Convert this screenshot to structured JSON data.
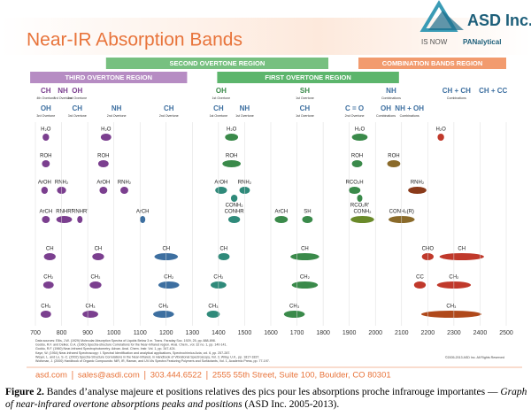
{
  "chart_data": {
    "type": "bands",
    "title": "Near-IR Absorption Bands",
    "logo": {
      "name": "ASD Inc.",
      "tagline": "IS NOW",
      "brand": "PANalytical"
    },
    "xlim": [
      700,
      2500
    ],
    "xticks": [
      700,
      800,
      900,
      1000,
      1100,
      1200,
      1300,
      1400,
      1500,
      1600,
      1700,
      1800,
      1900,
      2000,
      2100,
      2200,
      2300,
      2400,
      2500
    ],
    "regions": [
      {
        "name": "SECOND OVERTONE REGION",
        "from": 970,
        "to": 1820,
        "color": "#5fb56a",
        "tier": 0
      },
      {
        "name": "COMBINATION BANDS REGION",
        "from": 1935,
        "to": 2500,
        "color": "#f08a55",
        "tier": 0
      },
      {
        "name": "THIRD OVERTONE REGION",
        "from": 680,
        "to": 1280,
        "color": "#a978b8",
        "tier": 1
      },
      {
        "name": "FIRST OVERTONE REGION",
        "from": 1395,
        "to": 2090,
        "color": "#3fa852",
        "tier": 1
      }
    ],
    "groups": [
      {
        "name": "CH",
        "sub": "4th Overtone",
        "x": 740,
        "color": "#7b3f8f",
        "tier": 0
      },
      {
        "name": "NH",
        "sub": "3rd Overtone",
        "x": 805,
        "color": "#7b3f8f",
        "tier": 0
      },
      {
        "name": "OH",
        "sub": "2nd Overtone",
        "x": 860,
        "color": "#7b3f8f",
        "tier": 0
      },
      {
        "name": "OH",
        "sub": "1st Overtone",
        "x": 1410,
        "color": "#3a8a4a",
        "tier": 0
      },
      {
        "name": "SH",
        "sub": "1st Overtone",
        "x": 1730,
        "color": "#3a8a4a",
        "tier": 0
      },
      {
        "name": "NH",
        "sub": "Combinations",
        "x": 2060,
        "color": "#3d6fa0",
        "tier": 0
      },
      {
        "name": "CH + CH",
        "sub": "Combinations",
        "x": 2310,
        "color": "#3d6fa0",
        "tier": 0
      },
      {
        "name": "CH + CC",
        "x": 2450,
        "color": "#3d6fa0",
        "tier": 0
      },
      {
        "name": "OH",
        "sub": "3rd Overtone",
        "x": 740,
        "color": "#3d6fa0",
        "tier": 1
      },
      {
        "name": "CH",
        "sub": "3rd Overtone",
        "x": 860,
        "color": "#3d6fa0",
        "tier": 1
      },
      {
        "name": "NH",
        "sub": "2nd Overtone",
        "x": 1010,
        "color": "#3d6fa0",
        "tier": 1
      },
      {
        "name": "CH",
        "sub": "2nd Overtone",
        "x": 1210,
        "color": "#3d6fa0",
        "tier": 1
      },
      {
        "name": "CH",
        "sub": "1st Overtone",
        "x": 1400,
        "color": "#3d6fa0",
        "tier": 1
      },
      {
        "name": "NH",
        "sub": "1st Overtone",
        "x": 1500,
        "color": "#3d6fa0",
        "tier": 1
      },
      {
        "name": "CH",
        "sub": "1st Overtone",
        "x": 1730,
        "color": "#3d6fa0",
        "tier": 1
      },
      {
        "name": "C = O",
        "sub": "2nd Overtone",
        "x": 1920,
        "color": "#3d6fa0",
        "tier": 1
      },
      {
        "name": "OH",
        "sub": "Combinations",
        "x": 2040,
        "color": "#3d6fa0",
        "tier": 1
      },
      {
        "name": "NH + OH",
        "sub": "Combinations",
        "x": 2130,
        "color": "#3d6fa0",
        "tier": 1
      }
    ],
    "rows": [
      [
        {
          "label": "H₂O",
          "x": 740,
          "w": 25,
          "color": "#7b3f8f"
        },
        {
          "label": "H₂O",
          "x": 970,
          "w": 40,
          "color": "#7b3f8f"
        },
        {
          "label": "H₂O",
          "x": 1450,
          "w": 50,
          "color": "#3a8a4a"
        },
        {
          "label": "H₂O",
          "x": 1940,
          "w": 60,
          "color": "#3a8a4a"
        },
        {
          "label": "H₂O",
          "x": 2250,
          "w": 25,
          "color": "#c0392b"
        }
      ],
      [
        {
          "label": "ROH",
          "x": 740,
          "w": 30,
          "color": "#7b3f8f"
        },
        {
          "label": "ROH",
          "x": 960,
          "w": 40,
          "color": "#7b3f8f"
        },
        {
          "label": "ROH",
          "x": 1450,
          "w": 70,
          "color": "#3a8a4a"
        },
        {
          "label": "ROH",
          "x": 1930,
          "w": 40,
          "color": "#3a8a4a"
        },
        {
          "label": "ROH",
          "x": 2070,
          "w": 50,
          "color": "#8a6a2a"
        }
      ],
      [
        {
          "label": "ArOH",
          "x": 735,
          "w": 25,
          "color": "#7b3f8f"
        },
        {
          "label": "RNH₂",
          "x": 800,
          "w": 35,
          "color": "#7b3f8f"
        },
        {
          "label": "ArOH",
          "x": 960,
          "w": 30,
          "color": "#7b3f8f"
        },
        {
          "label": "RNH₂",
          "x": 1040,
          "w": 30,
          "color": "#7b3f8f"
        },
        {
          "label": "ArOH",
          "x": 1410,
          "w": 45,
          "color": "#2f8a7a"
        },
        {
          "label": "RNH₂",
          "x": 1500,
          "w": 40,
          "color": "#2f8a7a"
        },
        {
          "label": "CONH₂",
          "x": 1460,
          "w": 25,
          "color": "#2f8a7a",
          "label_pos": "below"
        },
        {
          "label": "RCO₂H",
          "x": 1920,
          "w": 45,
          "color": "#3a8a4a"
        },
        {
          "label": "RCO₂R'",
          "x": 1940,
          "w": 20,
          "color": "#3a8a4a",
          "label_pos": "below"
        },
        {
          "label": "RNH₂",
          "x": 2160,
          "w": 70,
          "color": "#8a3a1a"
        }
      ],
      [
        {
          "label": "ArCH",
          "x": 740,
          "w": 30,
          "color": "#7b3f8f"
        },
        {
          "label": "RNHR'",
          "x": 810,
          "w": 60,
          "color": "#7b3f8f"
        },
        {
          "label": "RNHR'",
          "x": 870,
          "w": 20,
          "color": "#7b3f8f"
        },
        {
          "label": "ArCH",
          "x": 1110,
          "w": 20,
          "color": "#3d6fa0"
        },
        {
          "label": "CONHR",
          "x": 1460,
          "w": 45,
          "color": "#2f8a7a"
        },
        {
          "label": "ArCH",
          "x": 1640,
          "w": 50,
          "color": "#3a8a4a"
        },
        {
          "label": "SH",
          "x": 1740,
          "w": 40,
          "color": "#3a8a4a"
        },
        {
          "label": "CONH₂",
          "x": 1950,
          "w": 90,
          "color": "#6a8a2a"
        },
        {
          "label": "CONH₂(R)",
          "x": 2100,
          "w": 100,
          "color": "#8a6a2a"
        }
      ],
      [
        {
          "label": "CH",
          "x": 755,
          "w": 45,
          "color": "#7b3f8f"
        },
        {
          "label": "CH",
          "x": 940,
          "w": 45,
          "color": "#7b3f8f"
        },
        {
          "label": "CH",
          "x": 1200,
          "w": 90,
          "color": "#3d6fa0"
        },
        {
          "label": "CH",
          "x": 1420,
          "w": 45,
          "color": "#2f8a7a"
        },
        {
          "label": "CH",
          "x": 1730,
          "w": 110,
          "color": "#3a8a4a"
        },
        {
          "label": "CHO",
          "x": 2200,
          "w": 45,
          "color": "#c0392b"
        },
        {
          "label": "CH",
          "x": 2330,
          "w": 170,
          "color": "#c0392b"
        }
      ],
      [
        {
          "label": "CH₂",
          "x": 750,
          "w": 40,
          "color": "#7b3f8f"
        },
        {
          "label": "CH₂",
          "x": 930,
          "w": 45,
          "color": "#7b3f8f"
        },
        {
          "label": "CH₂",
          "x": 1210,
          "w": 80,
          "color": "#3d6fa0"
        },
        {
          "label": "CH₂",
          "x": 1400,
          "w": 60,
          "color": "#2f8a7a"
        },
        {
          "label": "CH₂",
          "x": 1730,
          "w": 100,
          "color": "#3a8a4a"
        },
        {
          "label": "CC",
          "x": 2170,
          "w": 45,
          "color": "#c0392b"
        },
        {
          "label": "CH₂",
          "x": 2300,
          "w": 130,
          "color": "#c0392b"
        }
      ],
      [
        {
          "label": "CH₃",
          "x": 740,
          "w": 40,
          "color": "#7b3f8f"
        },
        {
          "label": "CH₃",
          "x": 910,
          "w": 60,
          "color": "#7b3f8f"
        },
        {
          "label": "CH₃",
          "x": 1190,
          "w": 80,
          "color": "#3d6fa0"
        },
        {
          "label": "CH₃",
          "x": 1380,
          "w": 50,
          "color": "#2f8a7a"
        },
        {
          "label": "CH₃",
          "x": 1690,
          "w": 80,
          "color": "#3a8a4a"
        },
        {
          "label": "CH₃",
          "x": 2290,
          "w": 230,
          "color": "#b0491b"
        }
      ]
    ],
    "references": [
      "Data sources: Ellis, J.W. (1929) Molecular Absorption Spectra of Liquids Below 3 m. Trans. Faraday Soc. 1929, 25, pp. 888-898.",
      "Goddu, R.F. and Delker, D.A. (1960) Spectra-structure Correlations for the Near-Infrared region. Anal. Chem., vol. 32 no. 1, pp. 140-141.",
      "Goddu, R.F. (1960) Near-Infrared Spectrophotometry. Advan. Anal. Chem. Instr. Vol. 1, pp. 347-424.",
      "Kaye, W. (1954) Near-infrared Spectroscopy: I. Spectral Identification and analytical applications, Spectrochimica Acta, vol. 6, pp. 257-287.",
      "Weyer, L. and Lo, S.-C. (2002) Spectra-Structure Correlations in the Near-infrared, in Handbook of Vibrational Spectroscopy, Vol. 3, Wiley, U.K., pp. 1817-1837.",
      "Workman, J. (2000) Handbook of Organic Compounds: NIR, IR, Raman, and UV-Vis Spectra Featuring Polymers and Surfactants, Vol. 1, Academic Press, pp. 77-197."
    ],
    "copyright": "©2005-2013 ASD Inc. All Rights Reserved",
    "contact": [
      "asd.com",
      "sales@asdi.com",
      "303.444.6522",
      "2555 55th Street, Suite 100, Boulder, CO 80301"
    ]
  },
  "caption": {
    "label": "Figure 2.",
    "text": "Bandes d’analyse majeure et positions relatives des pics pour les absorptions proche infrarouge importantes —",
    "italic": "Graph of near-infrared overtone absorptions peaks and positions",
    "source": "(ASD Inc. 2005-2013)."
  }
}
